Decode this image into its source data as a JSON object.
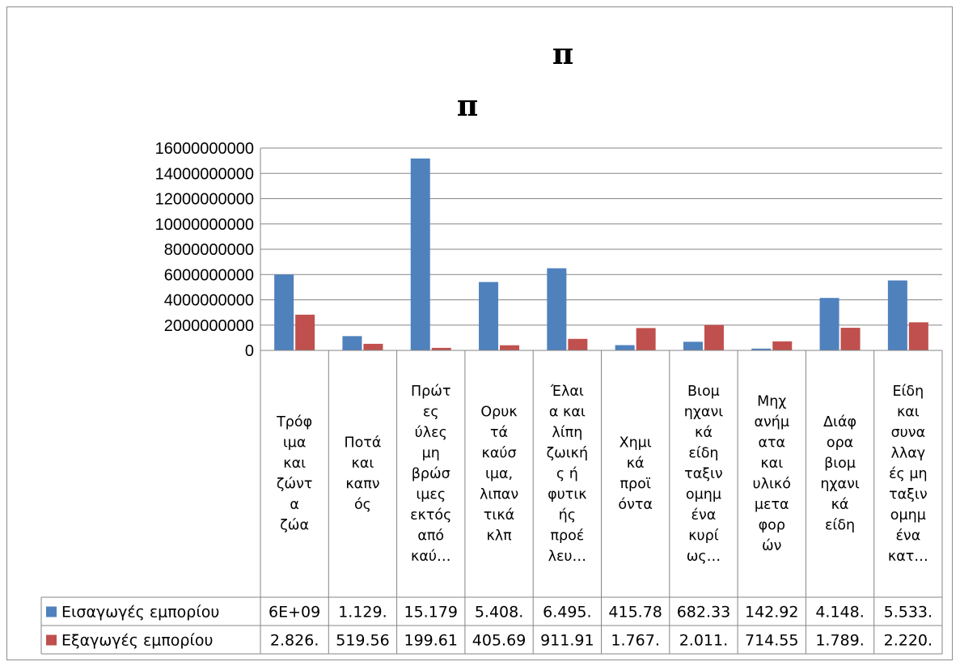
{
  "chart_data": {
    "type": "bar",
    "title_lines": [
      "π",
      "π"
    ],
    "xlabel": "",
    "ylabel": "",
    "ylim": [
      0,
      16000000000
    ],
    "yticks": [
      "0",
      "2000000000",
      "4000000000",
      "6000000000",
      "8000000000",
      "10000000000",
      "12000000000",
      "14000000000",
      "16000000000"
    ],
    "grid": true,
    "legend": "data-table",
    "categories": [
      "Τρόφιμα και ζώντα ζώα",
      "Ποτά και καπνός",
      "Πρώτες ύλες μη βρώσιμες εκτός από καύ…",
      "Ορυκτά καύσιμα, λιπαντικά κλπ",
      "Έλαια και λίπη ζωικής ή φυτικής προέλευ…",
      "Χημικά προϊόντα",
      "Βιομηχανικά είδη ταξινομημένα κυρίως…",
      "Μηχανήματα και υλικό μεταφορών",
      "Διάφορα βιομηχανικά είδη",
      "Είδη και συναλλαγές μη ταξινομημένα κατ…"
    ],
    "category_lines": [
      [
        "Τρόφ",
        "ιμα",
        "και",
        "ζώντ",
        "α",
        "ζώα"
      ],
      [
        "Ποτά",
        "και",
        "καπν",
        "ός"
      ],
      [
        "Πρώτ",
        "ες",
        "ύλες",
        "μη",
        "βρώσ",
        "ιμες",
        "εκτός",
        "από",
        "καύ…"
      ],
      [
        "Ορυκ",
        "τά",
        "καύσ",
        "ιμα,",
        "λιπαν",
        "τικά",
        "κλπ"
      ],
      [
        "Έλαι",
        "α και",
        "λίπη",
        "ζωική",
        "ς ή",
        "φυτικ",
        "ής",
        "προέ",
        "λευ…"
      ],
      [
        "Χημι",
        "κά",
        "προϊ",
        "όντα"
      ],
      [
        "Βιομ",
        "ηχανι",
        "κά",
        "είδη",
        "ταξιν",
        "ομημ",
        "ένα",
        "κυρί",
        "ως…"
      ],
      [
        "Μηχ",
        "ανήμ",
        "ατα",
        "και",
        "υλικό",
        "μετα",
        "φορ",
        "ών"
      ],
      [
        "Διάφ",
        "ορα",
        "βιομ",
        "ηχανι",
        "κά",
        "είδη"
      ],
      [
        "Είδη",
        "και",
        "συνα",
        "λλαγ",
        "ές μη",
        "ταξιν",
        "ομημ",
        "ένα",
        "κατ…"
      ]
    ],
    "series": [
      {
        "name": "Εισαγωγές εμπορίου",
        "color": "#4F81BD",
        "values": [
          6000000000,
          1129000000,
          15179000000,
          5408000000,
          6495000000,
          415780000,
          682330000,
          142920000,
          4148000000,
          5533000000
        ],
        "table_labels": [
          "6E+09",
          "1.129.",
          "15.179",
          "5.408.",
          "6.495.",
          "415.78",
          "682.33",
          "142.92",
          "4.148.",
          "5.533."
        ]
      },
      {
        "name": "Εξαγωγές εμπορίου",
        "color": "#C0504D",
        "values": [
          2826000000,
          519560000,
          199610000,
          405690000,
          911910000,
          1767000000,
          2011000000,
          714550000,
          1789000000,
          2220000000
        ],
        "table_labels": [
          "2.826.",
          "519.56",
          "199.61",
          "405.69",
          "911.91",
          "1.767.",
          "2.011.",
          "714.55",
          "1.789.",
          "2.220."
        ]
      }
    ]
  }
}
